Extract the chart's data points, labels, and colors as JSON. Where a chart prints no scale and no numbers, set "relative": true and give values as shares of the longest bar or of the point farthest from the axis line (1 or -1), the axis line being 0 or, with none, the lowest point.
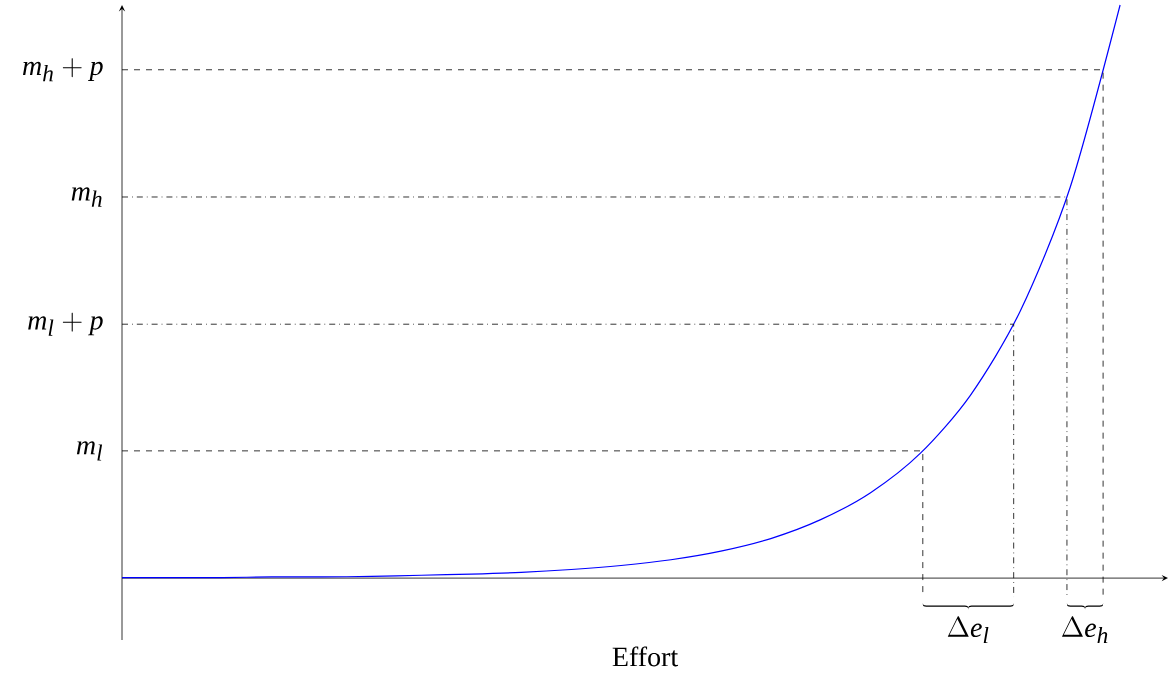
{
  "chart_data": {
    "type": "line",
    "xlabel": "Effort",
    "relative": true,
    "color": "#0000ff",
    "categories": [
      null,
      null,
      null,
      null,
      null,
      null,
      null,
      null,
      null,
      null,
      null,
      null,
      null,
      null,
      null,
      null,
      null,
      null,
      null,
      null,
      null
    ],
    "values": [
      0.001,
      0.001,
      0.001,
      0.002,
      0.002,
      0.003,
      0.005,
      0.007,
      0.01,
      0.015,
      0.022,
      0.032,
      0.047,
      0.069,
      0.102,
      0.149,
      0.218,
      0.319,
      0.466,
      0.682,
      1.0
    ],
    "ref_lines": [
      {
        "axis": "y",
        "value": 0.222,
        "label": "m_l",
        "line_style": "dashed",
        "color": "#000000"
      },
      {
        "axis": "y",
        "value": 0.443,
        "label": "m_l + p",
        "line_style": "dashdot",
        "color": "#000000"
      },
      {
        "axis": "y",
        "value": 0.665,
        "label": "m_h",
        "line_style": "dashdot",
        "color": "#000000"
      },
      {
        "axis": "y",
        "value": 0.887,
        "label": "m_h + p",
        "line_style": "dashed",
        "color": "#000000"
      }
    ],
    "annotations": [
      "\\Delta e_l",
      "\\Delta e_h"
    ]
  }
}
